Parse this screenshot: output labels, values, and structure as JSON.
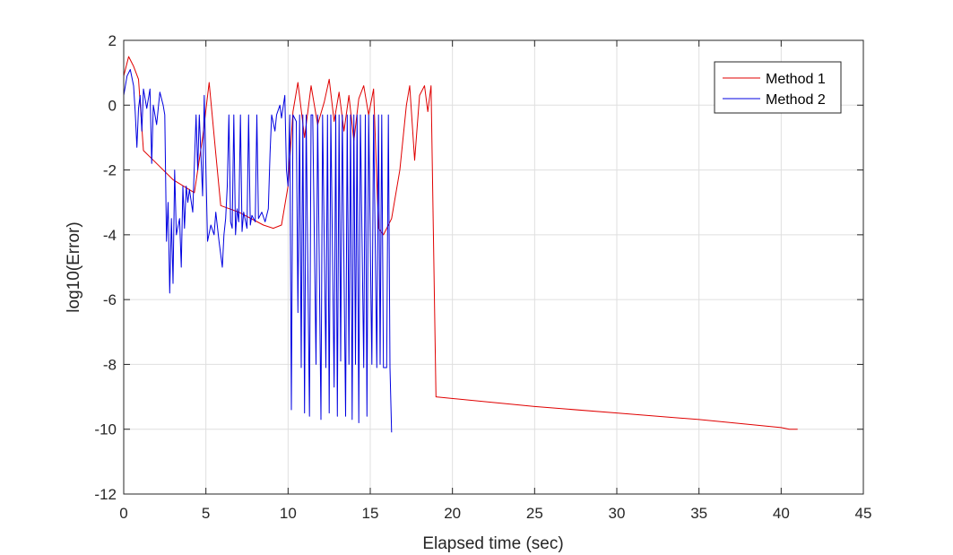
{
  "chart_data": {
    "type": "line",
    "title": "",
    "xlabel": "Elapsed time (sec)",
    "ylabel": "log10(Error)",
    "xlim": [
      0,
      45
    ],
    "ylim": [
      -12,
      2
    ],
    "xticks": [
      0,
      5,
      10,
      15,
      20,
      25,
      30,
      35,
      40,
      45
    ],
    "yticks": [
      2,
      0,
      -2,
      -4,
      -6,
      -8,
      -10,
      -12
    ],
    "grid": true,
    "legend_position": "top-right",
    "series": [
      {
        "name": "Method 1",
        "color": "#e00000",
        "points": [
          [
            0.0,
            0.9
          ],
          [
            0.3,
            1.5
          ],
          [
            0.6,
            1.2
          ],
          [
            0.9,
            0.8
          ],
          [
            1.2,
            -1.4
          ],
          [
            2.0,
            -1.8
          ],
          [
            3.0,
            -2.3
          ],
          [
            4.3,
            -2.7
          ],
          [
            4.8,
            -1.0
          ],
          [
            5.2,
            0.7
          ],
          [
            5.6,
            -1.5
          ],
          [
            5.9,
            -3.1
          ],
          [
            7.0,
            -3.3
          ],
          [
            8.5,
            -3.7
          ],
          [
            9.1,
            -3.8
          ],
          [
            9.6,
            -3.7
          ],
          [
            10.0,
            -2.5
          ],
          [
            10.3,
            -0.2
          ],
          [
            10.6,
            0.7
          ],
          [
            11.0,
            -1.0
          ],
          [
            11.4,
            0.6
          ],
          [
            11.8,
            -0.6
          ],
          [
            12.2,
            0.1
          ],
          [
            12.5,
            0.8
          ],
          [
            12.8,
            -0.5
          ],
          [
            13.1,
            0.4
          ],
          [
            13.4,
            -0.8
          ],
          [
            13.7,
            0.3
          ],
          [
            14.0,
            -1.1
          ],
          [
            14.3,
            0.2
          ],
          [
            14.6,
            0.6
          ],
          [
            14.9,
            -0.3
          ],
          [
            15.2,
            0.5
          ],
          [
            15.5,
            -3.8
          ],
          [
            15.8,
            -4.0
          ],
          [
            16.3,
            -3.5
          ],
          [
            16.8,
            -2.0
          ],
          [
            17.2,
            0.0
          ],
          [
            17.4,
            0.6
          ],
          [
            17.7,
            -1.7
          ],
          [
            18.0,
            0.3
          ],
          [
            18.3,
            0.6
          ],
          [
            18.5,
            -0.2
          ],
          [
            18.7,
            0.6
          ],
          [
            19.0,
            -9.0
          ],
          [
            25.0,
            -9.3
          ],
          [
            30.0,
            -9.5
          ],
          [
            35.0,
            -9.7
          ],
          [
            40.0,
            -9.95
          ],
          [
            40.5,
            -10.0
          ],
          [
            41.0,
            -10.0
          ]
        ]
      },
      {
        "name": "Method 2",
        "color": "#0000e0",
        "points": [
          [
            0.0,
            0.3
          ],
          [
            0.2,
            0.9
          ],
          [
            0.4,
            1.1
          ],
          [
            0.6,
            0.6
          ],
          [
            0.7,
            -0.2
          ],
          [
            0.8,
            -1.3
          ],
          [
            0.9,
            -0.1
          ],
          [
            1.0,
            0.3
          ],
          [
            1.1,
            -0.8
          ],
          [
            1.2,
            0.5
          ],
          [
            1.4,
            -0.1
          ],
          [
            1.6,
            0.5
          ],
          [
            1.7,
            -1.8
          ],
          [
            1.8,
            0.0
          ],
          [
            2.0,
            -0.6
          ],
          [
            2.2,
            0.4
          ],
          [
            2.4,
            0.0
          ],
          [
            2.5,
            -0.3
          ],
          [
            2.6,
            -4.2
          ],
          [
            2.7,
            -3.0
          ],
          [
            2.8,
            -5.8
          ],
          [
            2.9,
            -3.5
          ],
          [
            3.0,
            -5.5
          ],
          [
            3.1,
            -2.0
          ],
          [
            3.2,
            -4.0
          ],
          [
            3.4,
            -3.5
          ],
          [
            3.5,
            -5.0
          ],
          [
            3.6,
            -2.5
          ],
          [
            3.7,
            -3.8
          ],
          [
            3.8,
            -2.5
          ],
          [
            3.9,
            -3.0
          ],
          [
            4.0,
            -2.6
          ],
          [
            4.2,
            -3.3
          ],
          [
            4.4,
            -0.3
          ],
          [
            4.5,
            -2.0
          ],
          [
            4.6,
            -0.3
          ],
          [
            4.8,
            -2.8
          ],
          [
            4.9,
            0.3
          ],
          [
            5.0,
            -2.0
          ],
          [
            5.1,
            -4.2
          ],
          [
            5.3,
            -3.7
          ],
          [
            5.5,
            -4.0
          ],
          [
            5.6,
            -3.3
          ],
          [
            5.8,
            -4.2
          ],
          [
            6.0,
            -5.0
          ],
          [
            6.1,
            -4.0
          ],
          [
            6.2,
            -3.5
          ],
          [
            6.3,
            -2.5
          ],
          [
            6.4,
            -0.3
          ],
          [
            6.5,
            -3.6
          ],
          [
            6.6,
            -3.8
          ],
          [
            6.7,
            -0.3
          ],
          [
            6.8,
            -4.0
          ],
          [
            6.9,
            -3.2
          ],
          [
            7.0,
            -3.6
          ],
          [
            7.1,
            -0.3
          ],
          [
            7.2,
            -3.9
          ],
          [
            7.3,
            -3.3
          ],
          [
            7.5,
            -3.8
          ],
          [
            7.6,
            -0.3
          ],
          [
            7.7,
            -3.7
          ],
          [
            7.8,
            -3.4
          ],
          [
            8.0,
            -3.6
          ],
          [
            8.1,
            -0.3
          ],
          [
            8.2,
            -3.5
          ],
          [
            8.4,
            -3.3
          ],
          [
            8.6,
            -3.6
          ],
          [
            8.8,
            -3.2
          ],
          [
            8.9,
            -1.5
          ],
          [
            9.0,
            -0.3
          ],
          [
            9.2,
            -0.8
          ],
          [
            9.3,
            -0.3
          ],
          [
            9.5,
            0.0
          ],
          [
            9.6,
            -0.4
          ],
          [
            9.8,
            0.3
          ],
          [
            9.9,
            -2.0
          ],
          [
            10.0,
            -2.5
          ],
          [
            10.1,
            -0.3
          ],
          [
            10.2,
            -9.4
          ],
          [
            10.3,
            -0.3
          ],
          [
            10.5,
            -0.5
          ],
          [
            10.6,
            -6.4
          ],
          [
            10.7,
            -0.3
          ],
          [
            10.8,
            -8.1
          ],
          [
            10.9,
            -0.3
          ],
          [
            11.0,
            -9.5
          ],
          [
            11.1,
            -0.3
          ],
          [
            11.3,
            -9.6
          ],
          [
            11.4,
            -0.3
          ],
          [
            11.5,
            -0.3
          ],
          [
            11.7,
            -8.0
          ],
          [
            11.8,
            -0.3
          ],
          [
            12.0,
            -9.7
          ],
          [
            12.1,
            -0.3
          ],
          [
            12.3,
            -8.1
          ],
          [
            12.4,
            -0.3
          ],
          [
            12.5,
            -9.5
          ],
          [
            12.6,
            -0.3
          ],
          [
            12.8,
            -8.7
          ],
          [
            12.9,
            -0.3
          ],
          [
            13.0,
            -9.6
          ],
          [
            13.1,
            -0.3
          ],
          [
            13.2,
            -7.9
          ],
          [
            13.3,
            -0.3
          ],
          [
            13.5,
            -9.6
          ],
          [
            13.6,
            -0.3
          ],
          [
            13.7,
            -8.0
          ],
          [
            13.8,
            -0.3
          ],
          [
            13.9,
            -9.7
          ],
          [
            14.0,
            -0.3
          ],
          [
            14.1,
            -8.0
          ],
          [
            14.2,
            -0.3
          ],
          [
            14.3,
            -9.8
          ],
          [
            14.4,
            -0.3
          ],
          [
            14.6,
            -8.1
          ],
          [
            14.7,
            -0.3
          ],
          [
            14.8,
            -9.6
          ],
          [
            14.9,
            -0.3
          ],
          [
            15.1,
            -8.0
          ],
          [
            15.2,
            -0.3
          ],
          [
            15.4,
            -8.1
          ],
          [
            15.5,
            -0.3
          ],
          [
            15.6,
            -8.0
          ],
          [
            15.7,
            -0.3
          ],
          [
            15.8,
            -8.1
          ],
          [
            16.0,
            -8.1
          ],
          [
            16.1,
            -0.3
          ],
          [
            16.2,
            -8.1
          ],
          [
            16.3,
            -10.1
          ]
        ]
      }
    ]
  },
  "legend": {
    "items": [
      {
        "label": "Method 1",
        "color": "#e00000"
      },
      {
        "label": "Method 2",
        "color": "#0000e0"
      }
    ]
  }
}
